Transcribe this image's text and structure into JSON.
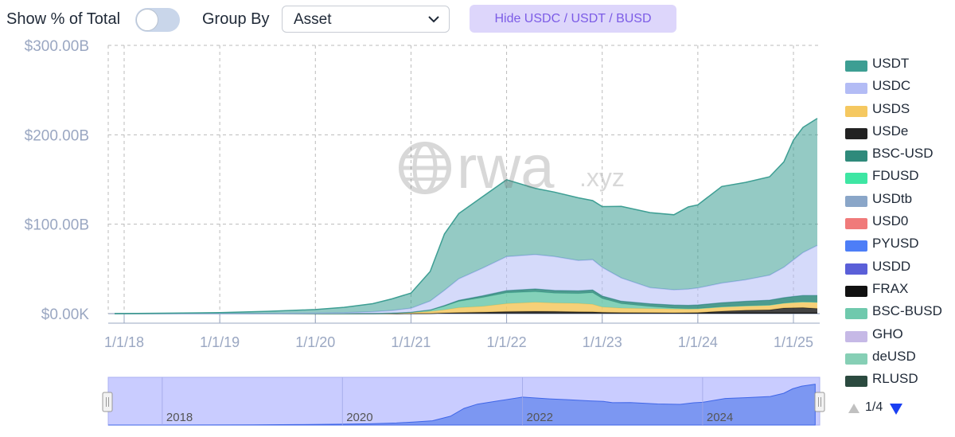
{
  "toolbar": {
    "show_pct_label": "Show % of Total",
    "show_pct_on": false,
    "group_by_label": "Group By",
    "group_by_value": "Asset",
    "hide_button": "Hide USDC / USDT / BUSD"
  },
  "watermark": {
    "logo_text": "rwa",
    "suffix": ".xyz"
  },
  "legend": {
    "items": [
      {
        "label": "USDT",
        "color": "#3d9e93"
      },
      {
        "label": "USDC",
        "color": "#b3bcf5"
      },
      {
        "label": "USDS",
        "color": "#f5c860"
      },
      {
        "label": "USDe",
        "color": "#222222"
      },
      {
        "label": "BSC-USD",
        "color": "#2f8a7b"
      },
      {
        "label": "FDUSD",
        "color": "#3ee6a3"
      },
      {
        "label": "USDtb",
        "color": "#8aa6c8"
      },
      {
        "label": "USD0",
        "color": "#f07a7a"
      },
      {
        "label": "PYUSD",
        "color": "#4d7ef7"
      },
      {
        "label": "USDD",
        "color": "#5a5fd8"
      },
      {
        "label": "FRAX",
        "color": "#111111"
      },
      {
        "label": "BSC-BUSD",
        "color": "#6fc9ad"
      },
      {
        "label": "GHO",
        "color": "#c6b9e6"
      },
      {
        "label": "deUSD",
        "color": "#86cfb5"
      },
      {
        "label": "RLUSD",
        "color": "#2b4a3f"
      }
    ],
    "page_text": "1/4"
  },
  "navigator": {
    "ticks": [
      "2018",
      "2020",
      "2022",
      "2024"
    ]
  },
  "chart_data": {
    "type": "area",
    "stacked": true,
    "x_tick_labels": [
      "1/1/18",
      "1/1/19",
      "1/1/20",
      "1/1/21",
      "1/1/22",
      "1/1/23",
      "1/1/24",
      "1/1/25"
    ],
    "y_tick_labels": [
      "$0.00K",
      "$100.00B",
      "$200.00B",
      "$300.00B"
    ],
    "ylim": [
      0,
      300
    ],
    "y_unit": "B USD",
    "grid": true,
    "legend_position": "right",
    "x": [
      2017.9,
      2018.5,
      2019.0,
      2019.5,
      2020.0,
      2020.3,
      2020.6,
      2020.8,
      2021.0,
      2021.2,
      2021.35,
      2021.5,
      2021.75,
      2022.0,
      2022.3,
      2022.5,
      2022.75,
      2022.9,
      2023.0,
      2023.2,
      2023.5,
      2023.75,
      2023.9,
      2024.0,
      2024.25,
      2024.5,
      2024.75,
      2024.9,
      2025.0,
      2025.1,
      2025.25
    ],
    "series": [
      {
        "name": "FRAX",
        "values": [
          0,
          0,
          0,
          0,
          0,
          0,
          0,
          0,
          0.1,
          0.3,
          0.8,
          1.2,
          1.6,
          2.2,
          2.6,
          2.4,
          2.0,
          1.9,
          1.4,
          1.1,
          1.0,
          0.9,
          0.8,
          0.7,
          0.7,
          0.7,
          0.7,
          0.7,
          0.7,
          0.7,
          0.7
        ]
      },
      {
        "name": "USDe",
        "values": [
          0,
          0,
          0,
          0,
          0,
          0,
          0,
          0,
          0,
          0,
          0,
          0,
          0,
          0,
          0,
          0,
          0,
          0,
          0,
          0,
          0,
          0,
          0.2,
          0.5,
          2.0,
          3.0,
          3.5,
          5.5,
          5.8,
          6.0,
          5.0
        ]
      },
      {
        "name": "USDS",
        "values": [
          0,
          0,
          0,
          0,
          0,
          0,
          0.1,
          0.4,
          1.0,
          2.0,
          3.5,
          5.5,
          6.5,
          9.0,
          10.0,
          9.5,
          9.5,
          8.5,
          6.0,
          5.0,
          4.5,
          4.2,
          4.0,
          4.2,
          4.8,
          5.0,
          5.2,
          5.5,
          6.0,
          6.5,
          7.0
        ]
      },
      {
        "name": "BSC-BUSD",
        "values": [
          0,
          0,
          0,
          0,
          0,
          0,
          0,
          0.1,
          0.3,
          1.5,
          4.0,
          7.0,
          10.0,
          12.0,
          12.0,
          11.0,
          11.0,
          13.0,
          9.5,
          5.0,
          2.5,
          1.0,
          0.5,
          0.3,
          0.2,
          0.1,
          0.1,
          0.1,
          0.1,
          0.1,
          0.1
        ]
      },
      {
        "name": "BSC-USD",
        "values": [
          0,
          0,
          0,
          0,
          0,
          0,
          0,
          0,
          0.1,
          0.3,
          0.8,
          1.2,
          1.8,
          2.5,
          3.0,
          3.0,
          3.0,
          3.0,
          2.8,
          2.8,
          3.0,
          3.5,
          3.8,
          4.0,
          4.5,
          5.0,
          5.5,
          6.0,
          6.5,
          7.0,
          7.5
        ]
      },
      {
        "name": "USDC",
        "values": [
          0,
          0,
          0,
          0.1,
          0.5,
          1.0,
          2.0,
          3.0,
          4.5,
          10.0,
          17.0,
          24.0,
          31.0,
          38.0,
          38.5,
          38.0,
          34.0,
          34.0,
          32.0,
          26.0,
          18.0,
          17.0,
          18.0,
          19.0,
          22.0,
          24.0,
          28.0,
          34.0,
          41.0,
          48.0,
          56.0
        ]
      },
      {
        "name": "USDT",
        "values": [
          0,
          0.5,
          1.2,
          2.5,
          4.0,
          6.0,
          9.0,
          13.0,
          17.0,
          33.0,
          63.0,
          73.0,
          80.0,
          86.0,
          74.0,
          72.0,
          70.0,
          66.0,
          68.0,
          80.0,
          84.0,
          84.0,
          92.0,
          93.0,
          108.0,
          109.0,
          110.0,
          118.0,
          134.0,
          140.0,
          142.0
        ]
      }
    ]
  }
}
